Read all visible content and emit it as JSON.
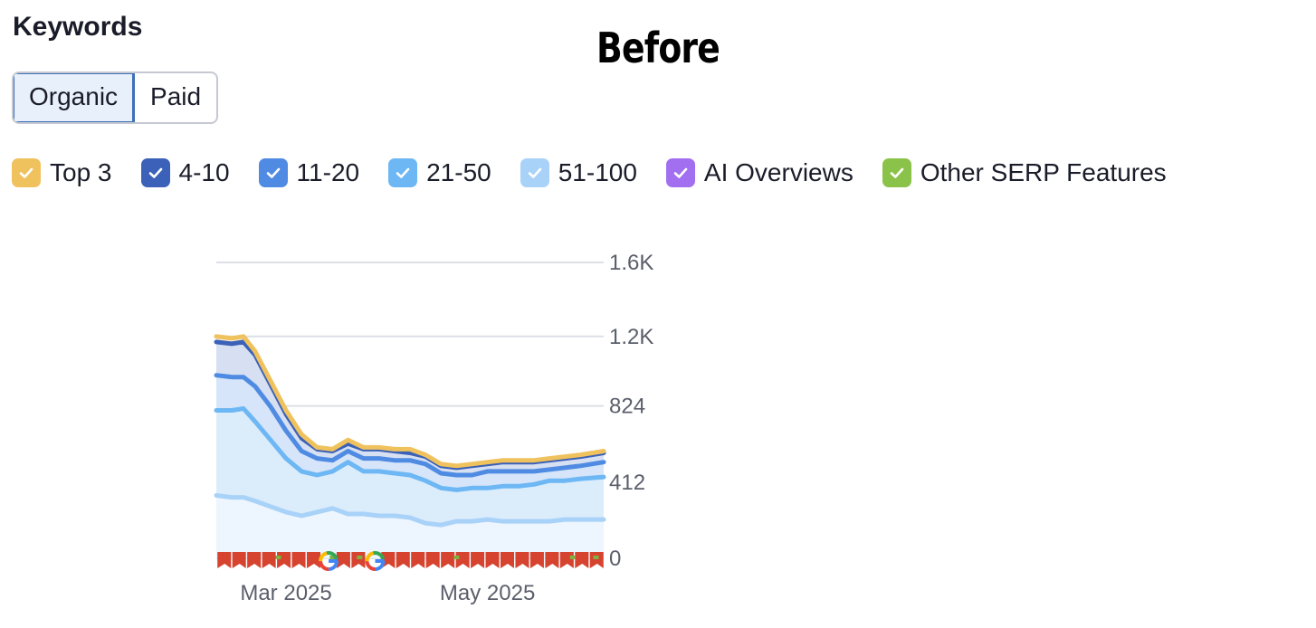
{
  "header": {
    "section_title": "Keywords",
    "overlay_title": "Before"
  },
  "toggle": {
    "options": [
      "Organic",
      "Paid"
    ],
    "selected": "Organic"
  },
  "legend": [
    {
      "label": "Top 3",
      "color": "#f0c25e",
      "checked": true
    },
    {
      "label": "4-10",
      "color": "#3b61b8",
      "checked": true
    },
    {
      "label": "11-20",
      "color": "#4f8be3",
      "checked": true
    },
    {
      "label": "21-50",
      "color": "#6db7f4",
      "checked": true
    },
    {
      "label": "51-100",
      "color": "#a9d2f8",
      "checked": true
    },
    {
      "label": "AI Overviews",
      "color": "#a26ff0",
      "checked": true
    },
    {
      "label": "Other SERP Features",
      "color": "#8bc34a",
      "checked": true
    }
  ],
  "chart_data": {
    "type": "area",
    "y_tick_labels": [
      "1.6K",
      "1.2K",
      "824",
      "412",
      "0"
    ],
    "y_ticks": [
      1600,
      1200,
      824,
      412,
      0
    ],
    "ylim": [
      0,
      1650
    ],
    "x_tick_labels": [
      "Mar 2025",
      "May 2025"
    ],
    "x_tick_positions": [
      0.18,
      0.7
    ],
    "grid": true,
    "stacked": true,
    "x": [
      0,
      0.04,
      0.07,
      0.1,
      0.14,
      0.18,
      0.22,
      0.26,
      0.3,
      0.34,
      0.38,
      0.42,
      0.46,
      0.5,
      0.54,
      0.58,
      0.62,
      0.66,
      0.7,
      0.74,
      0.78,
      0.82,
      0.86,
      0.9,
      0.94,
      1.0
    ],
    "series": [
      {
        "name": "51-100",
        "color": "#a9d2f8",
        "values": [
          340,
          330,
          330,
          310,
          280,
          250,
          230,
          250,
          270,
          240,
          240,
          230,
          230,
          220,
          190,
          180,
          200,
          200,
          210,
          200,
          200,
          200,
          200,
          210,
          210,
          210
        ]
      },
      {
        "name": "21-50",
        "color": "#6db7f4",
        "values": [
          800,
          800,
          810,
          740,
          640,
          540,
          470,
          450,
          470,
          520,
          470,
          470,
          460,
          450,
          420,
          380,
          370,
          380,
          380,
          390,
          390,
          400,
          420,
          420,
          430,
          440
        ]
      },
      {
        "name": "11-20",
        "color": "#4f8be3",
        "values": [
          990,
          980,
          980,
          930,
          820,
          690,
          580,
          540,
          530,
          580,
          540,
          540,
          530,
          530,
          510,
          460,
          450,
          450,
          470,
          470,
          470,
          470,
          480,
          490,
          500,
          520
        ]
      },
      {
        "name": "4-10",
        "color": "#3b61b8",
        "values": [
          1170,
          1160,
          1170,
          1100,
          940,
          780,
          650,
          590,
          580,
          620,
          590,
          590,
          580,
          570,
          550,
          500,
          490,
          500,
          510,
          520,
          520,
          520,
          530,
          540,
          550,
          570
        ]
      },
      {
        "name": "Top 3",
        "color": "#f0c25e",
        "values": [
          1200,
          1190,
          1200,
          1120,
          960,
          800,
          670,
          600,
          590,
          640,
          600,
          600,
          590,
          590,
          560,
          510,
          500,
          510,
          520,
          530,
          530,
          530,
          540,
          550,
          560,
          580
        ]
      }
    ],
    "serp_markers": {
      "count": 26,
      "google_positions": [
        0.29,
        0.41
      ]
    }
  }
}
